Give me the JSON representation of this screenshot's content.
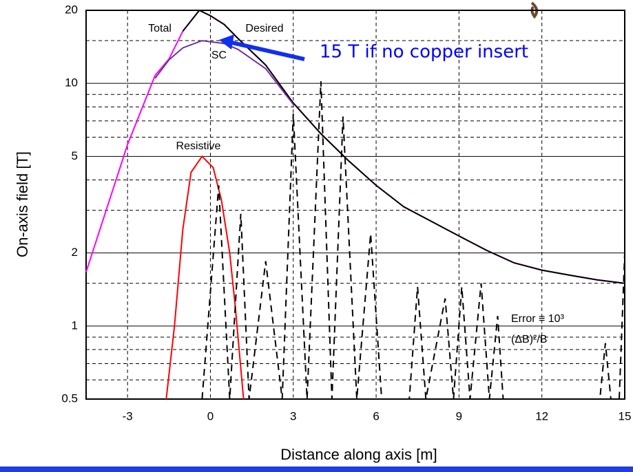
{
  "chart_data": {
    "type": "line",
    "xlabel": "Distance along axis  [m]",
    "ylabel": "On-axis field  [T]",
    "log_y": true,
    "grid": true,
    "xlim": [
      -4.5,
      15
    ],
    "xticks": [
      -3,
      0,
      3,
      6,
      9,
      12,
      15
    ],
    "ylim": [
      0.5,
      20
    ],
    "yticks": [
      0.5,
      1,
      2,
      5,
      10,
      20
    ],
    "y_minor_grid": [
      0.6,
      0.7,
      0.8,
      0.9,
      1.5,
      3,
      4,
      6,
      7,
      8,
      9,
      15
    ],
    "series": [
      {
        "name": "Total",
        "color": "#ff00ff",
        "x": [
          -4.5,
          -3,
          -2,
          -1.5,
          -1,
          -0.4,
          0,
          0.5,
          1,
          2,
          3,
          4,
          5,
          6,
          7,
          8,
          9,
          10,
          11,
          12,
          13,
          14,
          15
        ],
        "values": [
          1.67,
          5.6,
          10.8,
          12.6,
          16.4,
          20,
          19,
          17.5,
          15.3,
          11.9,
          8.3,
          6.2,
          4.8,
          3.8,
          3.1,
          2.7,
          2.35,
          2.05,
          1.82,
          1.7,
          1.62,
          1.55,
          1.5
        ]
      },
      {
        "name": "Desired",
        "color": "#000000",
        "x": [
          -1,
          -0.4,
          0,
          0.5,
          1,
          2,
          3,
          4,
          5,
          6,
          7,
          8,
          9,
          10,
          11,
          12,
          13,
          14,
          15
        ],
        "values": [
          16.4,
          20,
          19,
          17.5,
          15.3,
          11.9,
          8.3,
          6.2,
          4.8,
          3.8,
          3.1,
          2.7,
          2.35,
          2.05,
          1.82,
          1.7,
          1.62,
          1.55,
          1.5
        ]
      },
      {
        "name": "SC",
        "color": "#7030a0",
        "x": [
          -2,
          -1.5,
          -1,
          -0.3,
          0.5,
          1,
          2,
          3
        ],
        "values": [
          10.5,
          12.5,
          14,
          15,
          14.6,
          13.8,
          11.5,
          8.2
        ]
      },
      {
        "name": "Resistive",
        "color": "#ff0000",
        "x": [
          -1.6,
          -1.3,
          -1,
          -0.7,
          -0.3,
          0.1,
          0.4,
          0.7,
          0.9,
          1.2
        ],
        "values": [
          0.5,
          1,
          2.5,
          4.3,
          5,
          4.5,
          3.3,
          2,
          1.2,
          0.5
        ]
      },
      {
        "color": "#000000",
        "style": "dashed",
        "x": [
          -0.3,
          0.3,
          0.7,
          1.1,
          1.4,
          2.0,
          2.6,
          3.0,
          3.5,
          4.0,
          4.4,
          4.8,
          5.3,
          5.8,
          6.2,
          7.2,
          7.5,
          7.8,
          8.5,
          8.8,
          9.1,
          9.4,
          9.8,
          10.1,
          10.4,
          10.6,
          14.1,
          14.3,
          14.5,
          14.8,
          15.0
        ],
        "values": [
          0.5,
          3.8,
          0.5,
          2.9,
          0.5,
          1.85,
          0.5,
          7.5,
          0.5,
          10.2,
          0.5,
          7.3,
          0.5,
          2.4,
          0.5,
          0.5,
          1.45,
          0.5,
          1.3,
          0.5,
          1.45,
          0.5,
          1.5,
          0.5,
          1.1,
          0.5,
          0.5,
          0.85,
          0.5,
          0.5,
          2.0
        ]
      }
    ],
    "annotations": [
      "15 T if no copper insert",
      "Error ≡ 10³",
      "(ΔB)²/B"
    ]
  }
}
